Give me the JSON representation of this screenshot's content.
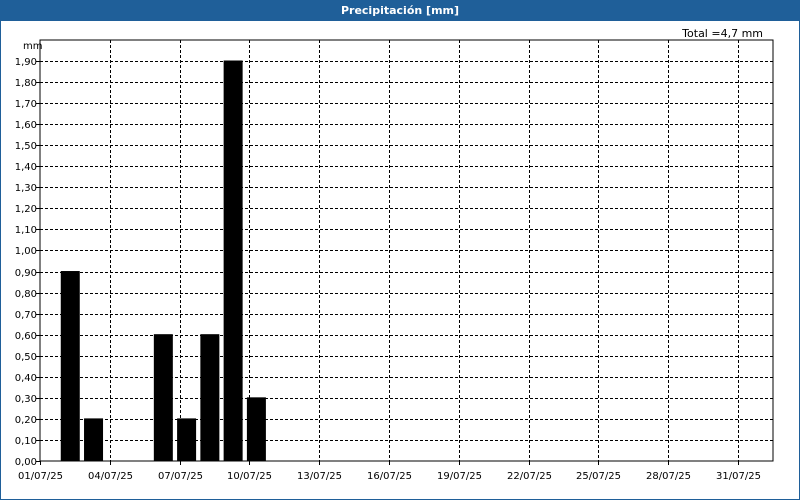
{
  "window": {
    "title": "Precipitación [mm]"
  },
  "summary": {
    "total_label": "Total =4,7 mm"
  },
  "chart_data": {
    "type": "bar",
    "title": "Precipitación [mm]",
    "ylabel": "mm",
    "ylim": [
      0,
      1.9
    ],
    "ystep": 0.1,
    "yticks": [
      "0,00",
      "0,10",
      "0,20",
      "0,30",
      "0,40",
      "0,50",
      "0,60",
      "0,70",
      "0,80",
      "0,90",
      "1,00",
      "1,10",
      "1,20",
      "1,30",
      "1,40",
      "1,50",
      "1,60",
      "1,70",
      "1,80",
      "1,90"
    ],
    "xrange": [
      "01/07/25",
      "31/07/25"
    ],
    "xticks": [
      "01/07/25",
      "04/07/25",
      "07/07/25",
      "10/07/25",
      "13/07/25",
      "16/07/25",
      "19/07/25",
      "22/07/25",
      "25/07/25",
      "28/07/25",
      "31/07/25"
    ],
    "bars": [
      {
        "date": "02/07/25",
        "value": 0.9
      },
      {
        "date": "03/07/25",
        "value": 0.2
      },
      {
        "date": "06/07/25",
        "value": 0.6
      },
      {
        "date": "07/07/25",
        "value": 0.2
      },
      {
        "date": "08/07/25",
        "value": 0.6
      },
      {
        "date": "09/07/25",
        "value": 1.9
      },
      {
        "date": "10/07/25",
        "value": 0.3
      }
    ],
    "grid": true,
    "bar_color": "#000000"
  }
}
